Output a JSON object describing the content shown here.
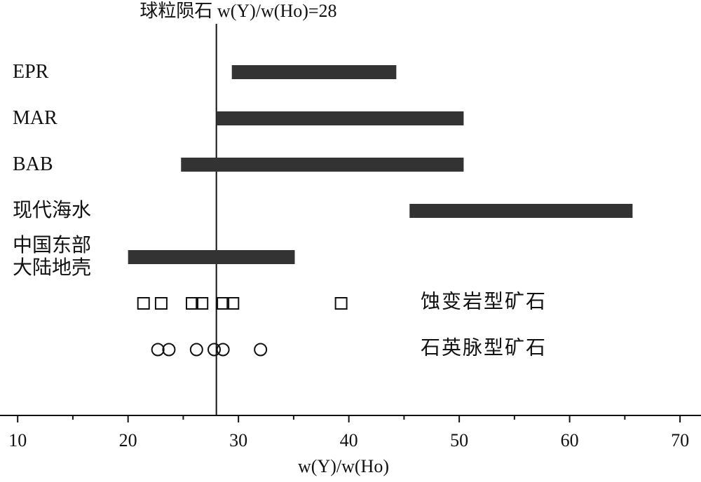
{
  "chart_data": {
    "type": "range-bar",
    "annotation": "球粒陨石 w(Y)/w(Ho)=28",
    "refline": 28,
    "xlabel": "w(Y)/w(Ho)",
    "xlim": [
      8.4,
      71.9
    ],
    "xticks": [
      10,
      20,
      30,
      40,
      50,
      60,
      70
    ],
    "xminorticks": [
      15,
      25,
      35,
      45,
      55,
      65
    ],
    "color": "#333333",
    "categories": [
      "EPR",
      "MAR",
      "BAB",
      "现代海水",
      "中国东部\n大陆地壳"
    ],
    "ranges": [
      [
        29.4,
        44.3
      ],
      [
        28,
        50.4
      ],
      [
        24.8,
        50.4
      ],
      [
        45.5,
        65.7
      ],
      [
        20,
        35.1
      ]
    ],
    "point_groups": [
      {
        "name": "蚀变岩型矿石",
        "marker": "square",
        "values": [
          21.4,
          23,
          25.8,
          26.7,
          28.6,
          29.5,
          39.3
        ]
      },
      {
        "name": "石英脉型矿石",
        "marker": "circle",
        "values": [
          22.7,
          23.7,
          26.2,
          27.8,
          28.6,
          32
        ]
      }
    ]
  }
}
